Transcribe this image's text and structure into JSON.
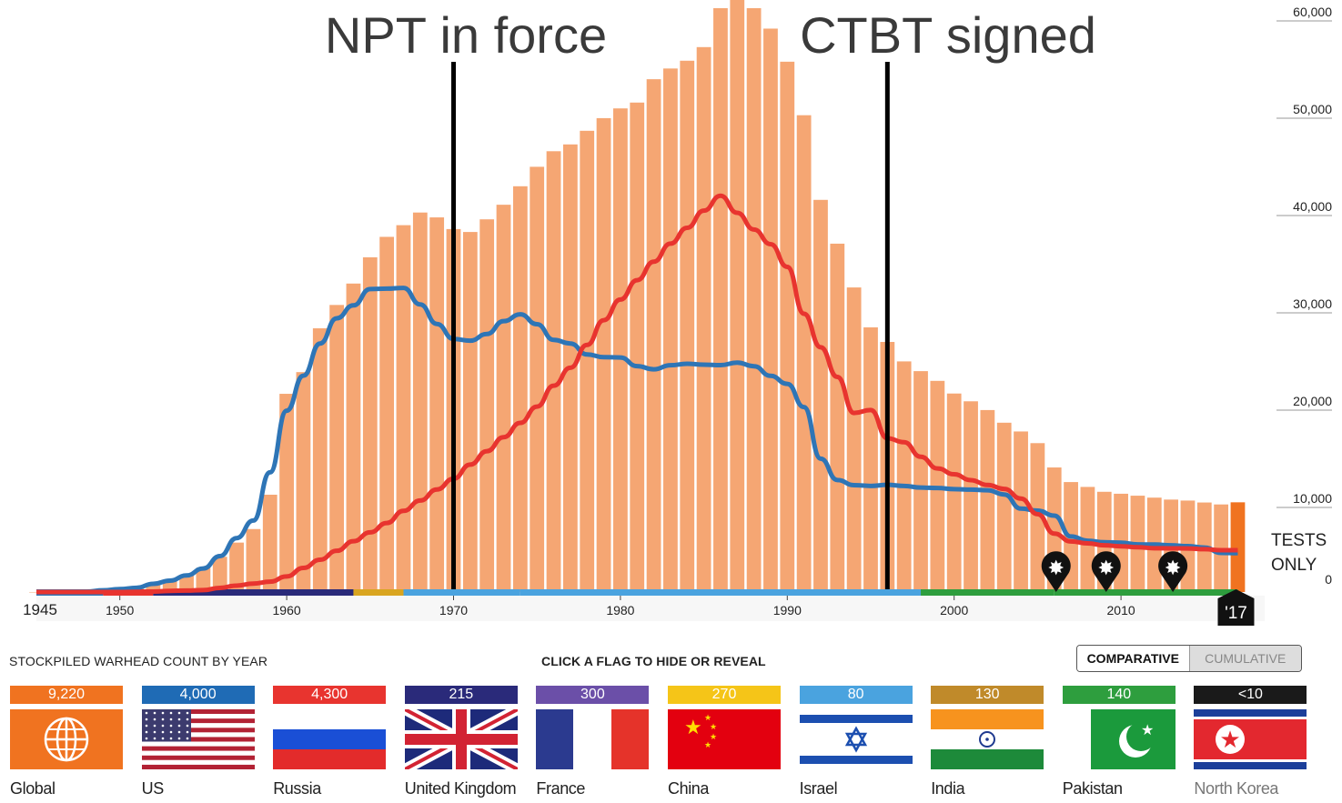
{
  "chart_data": {
    "type": "bar",
    "title": "",
    "xlabel": "",
    "ylabel": "",
    "ylim": [
      0,
      60000
    ],
    "y_ticks": [
      "60,000",
      "50,000",
      "40,000",
      "30,000",
      "20,000",
      "10,000",
      "0"
    ],
    "x_ticks": [
      "1945",
      "1950",
      "1960",
      "1970",
      "1980",
      "1990",
      "2000",
      "2010"
    ],
    "current_year_label": "'17",
    "tests_only_label": "TESTS ONLY",
    "annotations": [
      {
        "text": "NPT in force",
        "year": 1970
      },
      {
        "text": "CTBT signed",
        "year": 1996
      }
    ],
    "test_marker_years": [
      2006,
      2009,
      2013
    ],
    "grid": true,
    "bar_color": "#f5a673",
    "highlight_bar_color": "#f07320",
    "years": [
      1945,
      1946,
      1947,
      1948,
      1949,
      1950,
      1951,
      1952,
      1953,
      1954,
      1955,
      1956,
      1957,
      1958,
      1959,
      1960,
      1961,
      1962,
      1963,
      1964,
      1965,
      1966,
      1967,
      1968,
      1969,
      1970,
      1971,
      1972,
      1973,
      1974,
      1975,
      1976,
      1977,
      1978,
      1979,
      1980,
      1981,
      1982,
      1983,
      1984,
      1985,
      1986,
      1987,
      1988,
      1989,
      1990,
      1991,
      1992,
      1993,
      1994,
      1995,
      1996,
      1997,
      1998,
      1999,
      2000,
      2001,
      2002,
      2003,
      2004,
      2005,
      2006,
      2007,
      2008,
      2009,
      2010,
      2011,
      2012,
      2013,
      2014,
      2015,
      2016,
      2017
    ],
    "series": [
      {
        "name": "Global",
        "color": "#f5a673",
        "values": [
          2,
          9,
          13,
          50,
          170,
          304,
          438,
          841,
          1169,
          1703,
          2490,
          3620,
          5080,
          6470,
          10000,
          20370,
          22600,
          27100,
          29500,
          31700,
          34400,
          36500,
          37700,
          39000,
          38500,
          37300,
          37000,
          38300,
          39800,
          41700,
          43700,
          45300,
          46000,
          47400,
          48700,
          49700,
          50300,
          52700,
          53800,
          54600,
          56000,
          60000,
          61000,
          60000,
          57900,
          54500,
          49000,
          40300,
          35800,
          31300,
          27200,
          25700,
          23700,
          22700,
          21700,
          20400,
          19600,
          18700,
          17400,
          16500,
          15300,
          12800,
          11300,
          10800,
          10300,
          10100,
          9900,
          9700,
          9500,
          9400,
          9200,
          9000,
          9220
        ]
      },
      {
        "name": "US",
        "color": "#2e75b6",
        "values": [
          2,
          9,
          13,
          50,
          170,
          299,
          438,
          841,
          1169,
          1703,
          2422,
          3692,
          5543,
          7345,
          12298,
          18638,
          22229,
          25540,
          28133,
          29463,
          31139,
          31175,
          31255,
          29561,
          27552,
          26008,
          25830,
          26516,
          27835,
          28537,
          27519,
          25914,
          25542,
          24418,
          24138,
          24104,
          23208,
          22886,
          23305,
          23459,
          23368,
          23317,
          23575,
          23205,
          22217,
          21392,
          19008,
          13708,
          11511,
          10979,
          10904,
          11011,
          10903,
          10732,
          10685,
          10577,
          10526,
          10457,
          10027,
          8570,
          8360,
          7853,
          5709,
          5273,
          5113,
          5066,
          4897,
          4881,
          4804,
          4717,
          4571,
          4018,
          4000
        ]
      },
      {
        "name": "Russia",
        "color": "#e8342f",
        "values": [
          0,
          0,
          0,
          0,
          1,
          5,
          25,
          50,
          120,
          150,
          200,
          426,
          660,
          869,
          1060,
          1605,
          2471,
          3322,
          4238,
          5221,
          6129,
          7089,
          8339,
          9399,
          10538,
          11643,
          13092,
          14478,
          15915,
          17385,
          19055,
          21205,
          23044,
          25393,
          27935,
          30062,
          32049,
          33952,
          35804,
          37431,
          39197,
          40723,
          38974,
          37260,
          35750,
          33417,
          28595,
          25155,
          22101,
          18399,
          18699,
          15800,
          15400,
          13900,
          12700,
          12100,
          11500,
          11000,
          10600,
          9600,
          8000,
          6000,
          5200,
          5000,
          4800,
          4700,
          4600,
          4500,
          4490,
          4480,
          4400,
          4300,
          4300
        ]
      }
    ]
  },
  "legend": {
    "title": "STOCKPILED WARHEAD COUNT BY YEAR",
    "hint": "CLICK A FLAG TO HIDE OR REVEAL",
    "mode_active": "COMPARATIVE",
    "mode_inactive": "CUMULATIVE",
    "flags": [
      {
        "name": "Global",
        "count": "9,220",
        "color": "#f07320"
      },
      {
        "name": "US",
        "count": "4,000",
        "color": "#1f6bb5"
      },
      {
        "name": "Russia",
        "count": "4,300",
        "color": "#e8342f"
      },
      {
        "name": "United Kingdom",
        "count": "215",
        "color": "#2a2a7a"
      },
      {
        "name": "France",
        "count": "300",
        "color": "#6b4fa8"
      },
      {
        "name": "China",
        "count": "270",
        "color": "#f5c518"
      },
      {
        "name": "Israel",
        "count": "80",
        "color": "#4aa3df"
      },
      {
        "name": "India",
        "count": "130",
        "color": "#c08a2a"
      },
      {
        "name": "Pakistan",
        "count": "140",
        "color": "#2e9e3e"
      },
      {
        "name": "North Korea",
        "count": "<10",
        "color": "#1a1a1a"
      }
    ]
  }
}
